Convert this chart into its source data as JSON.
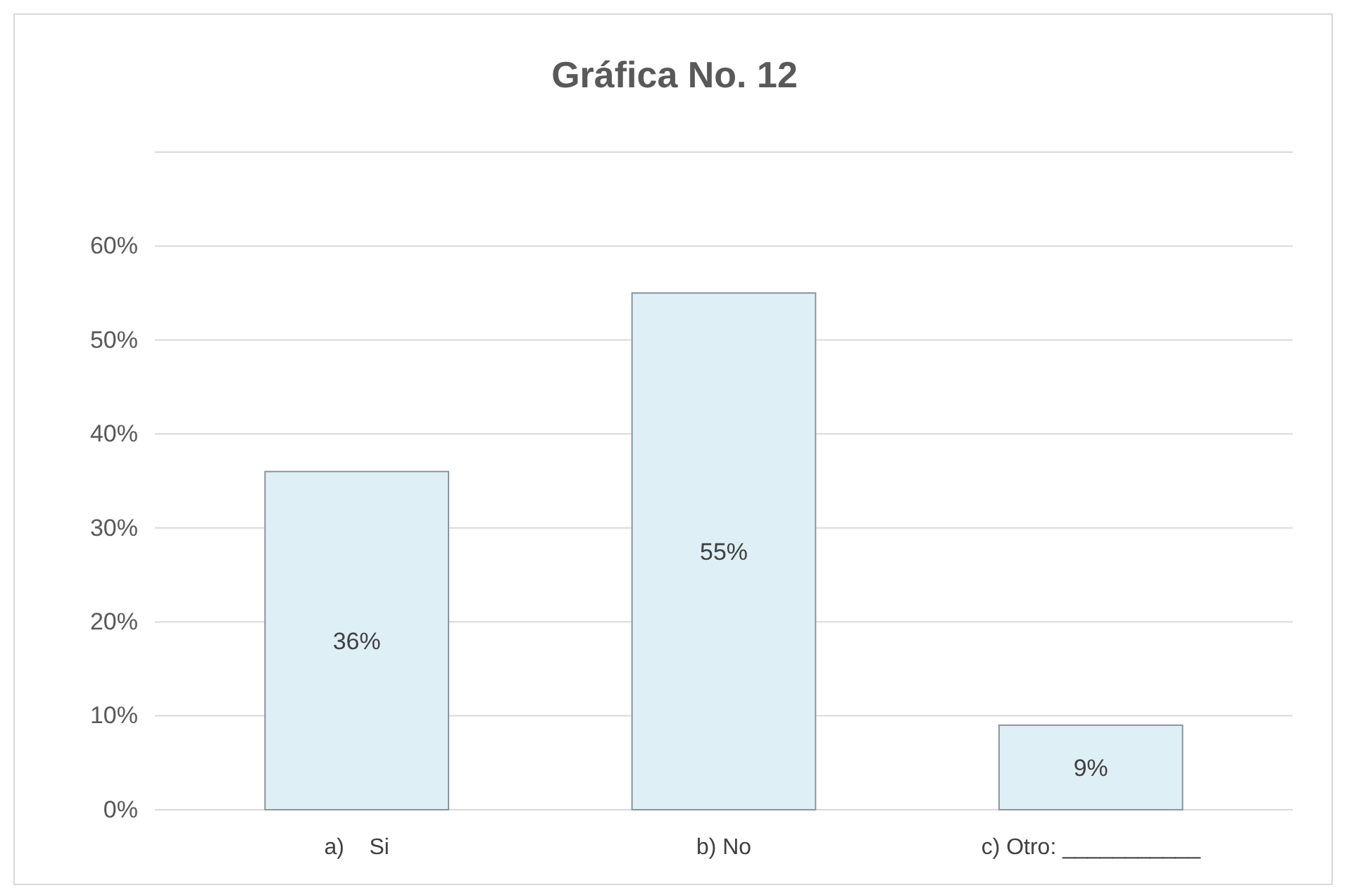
{
  "chart_data": {
    "type": "bar",
    "title": "Gráfica No. 12",
    "categories": [
      "a)    Si",
      "b) No",
      "c) Otro: ___________"
    ],
    "values": [
      36,
      55,
      9
    ],
    "value_labels": [
      "36%",
      "55%",
      "9%"
    ],
    "color": "#deeff5",
    "ylim": [
      0,
      70
    ],
    "yticks": [
      {
        "value": 0,
        "label": "0%"
      },
      {
        "value": 10,
        "label": "10%"
      },
      {
        "value": 20,
        "label": "20%"
      },
      {
        "value": 30,
        "label": "30%"
      },
      {
        "value": 40,
        "label": "40%"
      },
      {
        "value": 50,
        "label": "50%"
      },
      {
        "value": 60,
        "label": "60%"
      },
      {
        "value": 70,
        "label": null
      }
    ],
    "grid": "y"
  }
}
